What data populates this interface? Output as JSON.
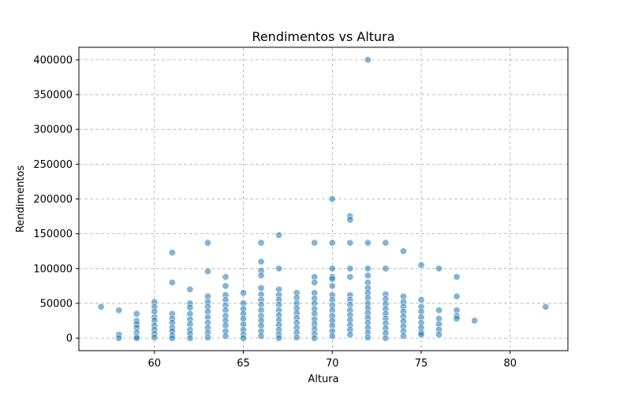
{
  "chart_data": {
    "type": "scatter",
    "title": "Rendimentos vs Altura",
    "xlabel": "Altura",
    "ylabel": "Rendimentos",
    "xlim": [
      55.75,
      83.25
    ],
    "ylim": [
      -18000,
      418000
    ],
    "xticks": [
      60,
      65,
      70,
      75,
      80
    ],
    "yticks": [
      0,
      50000,
      100000,
      150000,
      200000,
      250000,
      300000,
      350000,
      400000
    ],
    "grid": true,
    "color": "#1f77b4",
    "points": [
      [
        57,
        45000
      ],
      [
        58,
        40000
      ],
      [
        58,
        5000
      ],
      [
        58,
        0
      ],
      [
        59,
        35000
      ],
      [
        59,
        25000
      ],
      [
        59,
        20000
      ],
      [
        59,
        15000
      ],
      [
        59,
        8000
      ],
      [
        59,
        2000
      ],
      [
        59,
        0
      ],
      [
        60,
        52000
      ],
      [
        60,
        45000
      ],
      [
        60,
        38000
      ],
      [
        60,
        30000
      ],
      [
        60,
        25000
      ],
      [
        60,
        18000
      ],
      [
        60,
        12000
      ],
      [
        60,
        6000
      ],
      [
        60,
        1000
      ],
      [
        61,
        123000
      ],
      [
        61,
        80000
      ],
      [
        61,
        35000
      ],
      [
        61,
        28000
      ],
      [
        61,
        22000
      ],
      [
        61,
        15000
      ],
      [
        61,
        10000
      ],
      [
        61,
        4000
      ],
      [
        61,
        0
      ],
      [
        62,
        70000
      ],
      [
        62,
        50000
      ],
      [
        62,
        44000
      ],
      [
        62,
        35000
      ],
      [
        62,
        27000
      ],
      [
        62,
        20000
      ],
      [
        62,
        12000
      ],
      [
        62,
        6000
      ],
      [
        62,
        0
      ],
      [
        63,
        137000
      ],
      [
        63,
        96000
      ],
      [
        63,
        60000
      ],
      [
        63,
        52000
      ],
      [
        63,
        45000
      ],
      [
        63,
        38000
      ],
      [
        63,
        30000
      ],
      [
        63,
        22000
      ],
      [
        63,
        15000
      ],
      [
        63,
        8000
      ],
      [
        63,
        1000
      ],
      [
        64,
        88000
      ],
      [
        64,
        75000
      ],
      [
        64,
        62000
      ],
      [
        64,
        55000
      ],
      [
        64,
        47000
      ],
      [
        64,
        40000
      ],
      [
        64,
        32000
      ],
      [
        64,
        25000
      ],
      [
        64,
        18000
      ],
      [
        64,
        10000
      ],
      [
        64,
        3000
      ],
      [
        65,
        65000
      ],
      [
        65,
        50000
      ],
      [
        65,
        42000
      ],
      [
        65,
        35000
      ],
      [
        65,
        28000
      ],
      [
        65,
        20000
      ],
      [
        65,
        12000
      ],
      [
        65,
        5000
      ],
      [
        65,
        0
      ],
      [
        66,
        137000
      ],
      [
        66,
        110000
      ],
      [
        66,
        97000
      ],
      [
        66,
        90000
      ],
      [
        66,
        72000
      ],
      [
        66,
        63000
      ],
      [
        66,
        55000
      ],
      [
        66,
        48000
      ],
      [
        66,
        40000
      ],
      [
        66,
        32000
      ],
      [
        66,
        25000
      ],
      [
        66,
        18000
      ],
      [
        66,
        10000
      ],
      [
        66,
        3000
      ],
      [
        67,
        148000
      ],
      [
        67,
        100000
      ],
      [
        67,
        70000
      ],
      [
        67,
        62000
      ],
      [
        67,
        55000
      ],
      [
        67,
        48000
      ],
      [
        67,
        40000
      ],
      [
        67,
        33000
      ],
      [
        67,
        26000
      ],
      [
        67,
        19000
      ],
      [
        67,
        12000
      ],
      [
        67,
        5000
      ],
      [
        67,
        0
      ],
      [
        68,
        65000
      ],
      [
        68,
        58000
      ],
      [
        68,
        50000
      ],
      [
        68,
        43000
      ],
      [
        68,
        36000
      ],
      [
        68,
        29000
      ],
      [
        68,
        22000
      ],
      [
        68,
        15000
      ],
      [
        68,
        8000
      ],
      [
        68,
        1000
      ],
      [
        69,
        137000
      ],
      [
        69,
        88000
      ],
      [
        69,
        80000
      ],
      [
        69,
        65000
      ],
      [
        69,
        57000
      ],
      [
        69,
        50000
      ],
      [
        69,
        42000
      ],
      [
        69,
        35000
      ],
      [
        69,
        27000
      ],
      [
        69,
        20000
      ],
      [
        69,
        13000
      ],
      [
        69,
        6000
      ],
      [
        69,
        0
      ],
      [
        70,
        200000
      ],
      [
        70,
        137000
      ],
      [
        70,
        100000
      ],
      [
        70,
        88000
      ],
      [
        70,
        85000
      ],
      [
        70,
        75000
      ],
      [
        70,
        62000
      ],
      [
        70,
        55000
      ],
      [
        70,
        47000
      ],
      [
        70,
        40000
      ],
      [
        70,
        32000
      ],
      [
        70,
        25000
      ],
      [
        70,
        18000
      ],
      [
        70,
        10000
      ],
      [
        70,
        3000
      ],
      [
        71,
        175000
      ],
      [
        71,
        170000
      ],
      [
        71,
        137000
      ],
      [
        71,
        100000
      ],
      [
        71,
        88000
      ],
      [
        71,
        62000
      ],
      [
        71,
        55000
      ],
      [
        71,
        48000
      ],
      [
        71,
        40000
      ],
      [
        71,
        33000
      ],
      [
        71,
        26000
      ],
      [
        71,
        19000
      ],
      [
        71,
        12000
      ],
      [
        71,
        5000
      ],
      [
        72,
        400000
      ],
      [
        72,
        137000
      ],
      [
        72,
        100000
      ],
      [
        72,
        90000
      ],
      [
        72,
        80000
      ],
      [
        72,
        72000
      ],
      [
        72,
        65000
      ],
      [
        72,
        58000
      ],
      [
        72,
        50000
      ],
      [
        72,
        43000
      ],
      [
        72,
        36000
      ],
      [
        72,
        29000
      ],
      [
        72,
        22000
      ],
      [
        72,
        15000
      ],
      [
        72,
        8000
      ],
      [
        72,
        1000
      ],
      [
        73,
        137000
      ],
      [
        73,
        100000
      ],
      [
        73,
        63000
      ],
      [
        73,
        56000
      ],
      [
        73,
        49000
      ],
      [
        73,
        42000
      ],
      [
        73,
        35000
      ],
      [
        73,
        28000
      ],
      [
        73,
        21000
      ],
      [
        73,
        14000
      ],
      [
        73,
        7000
      ],
      [
        73,
        0
      ],
      [
        74,
        125000
      ],
      [
        74,
        60000
      ],
      [
        74,
        52000
      ],
      [
        74,
        45000
      ],
      [
        74,
        38000
      ],
      [
        74,
        31000
      ],
      [
        74,
        24000
      ],
      [
        74,
        17000
      ],
      [
        74,
        10000
      ],
      [
        74,
        3000
      ],
      [
        75,
        105000
      ],
      [
        75,
        55000
      ],
      [
        75,
        45000
      ],
      [
        75,
        38000
      ],
      [
        75,
        30000
      ],
      [
        75,
        22000
      ],
      [
        75,
        15000
      ],
      [
        75,
        8000
      ],
      [
        75,
        5000
      ],
      [
        76,
        100000
      ],
      [
        76,
        40000
      ],
      [
        76,
        28000
      ],
      [
        76,
        20000
      ],
      [
        76,
        12000
      ],
      [
        76,
        5000
      ],
      [
        77,
        88000
      ],
      [
        77,
        60000
      ],
      [
        77,
        40000
      ],
      [
        77,
        32000
      ],
      [
        77,
        28000
      ],
      [
        78,
        25000
      ],
      [
        82,
        45000
      ]
    ]
  }
}
